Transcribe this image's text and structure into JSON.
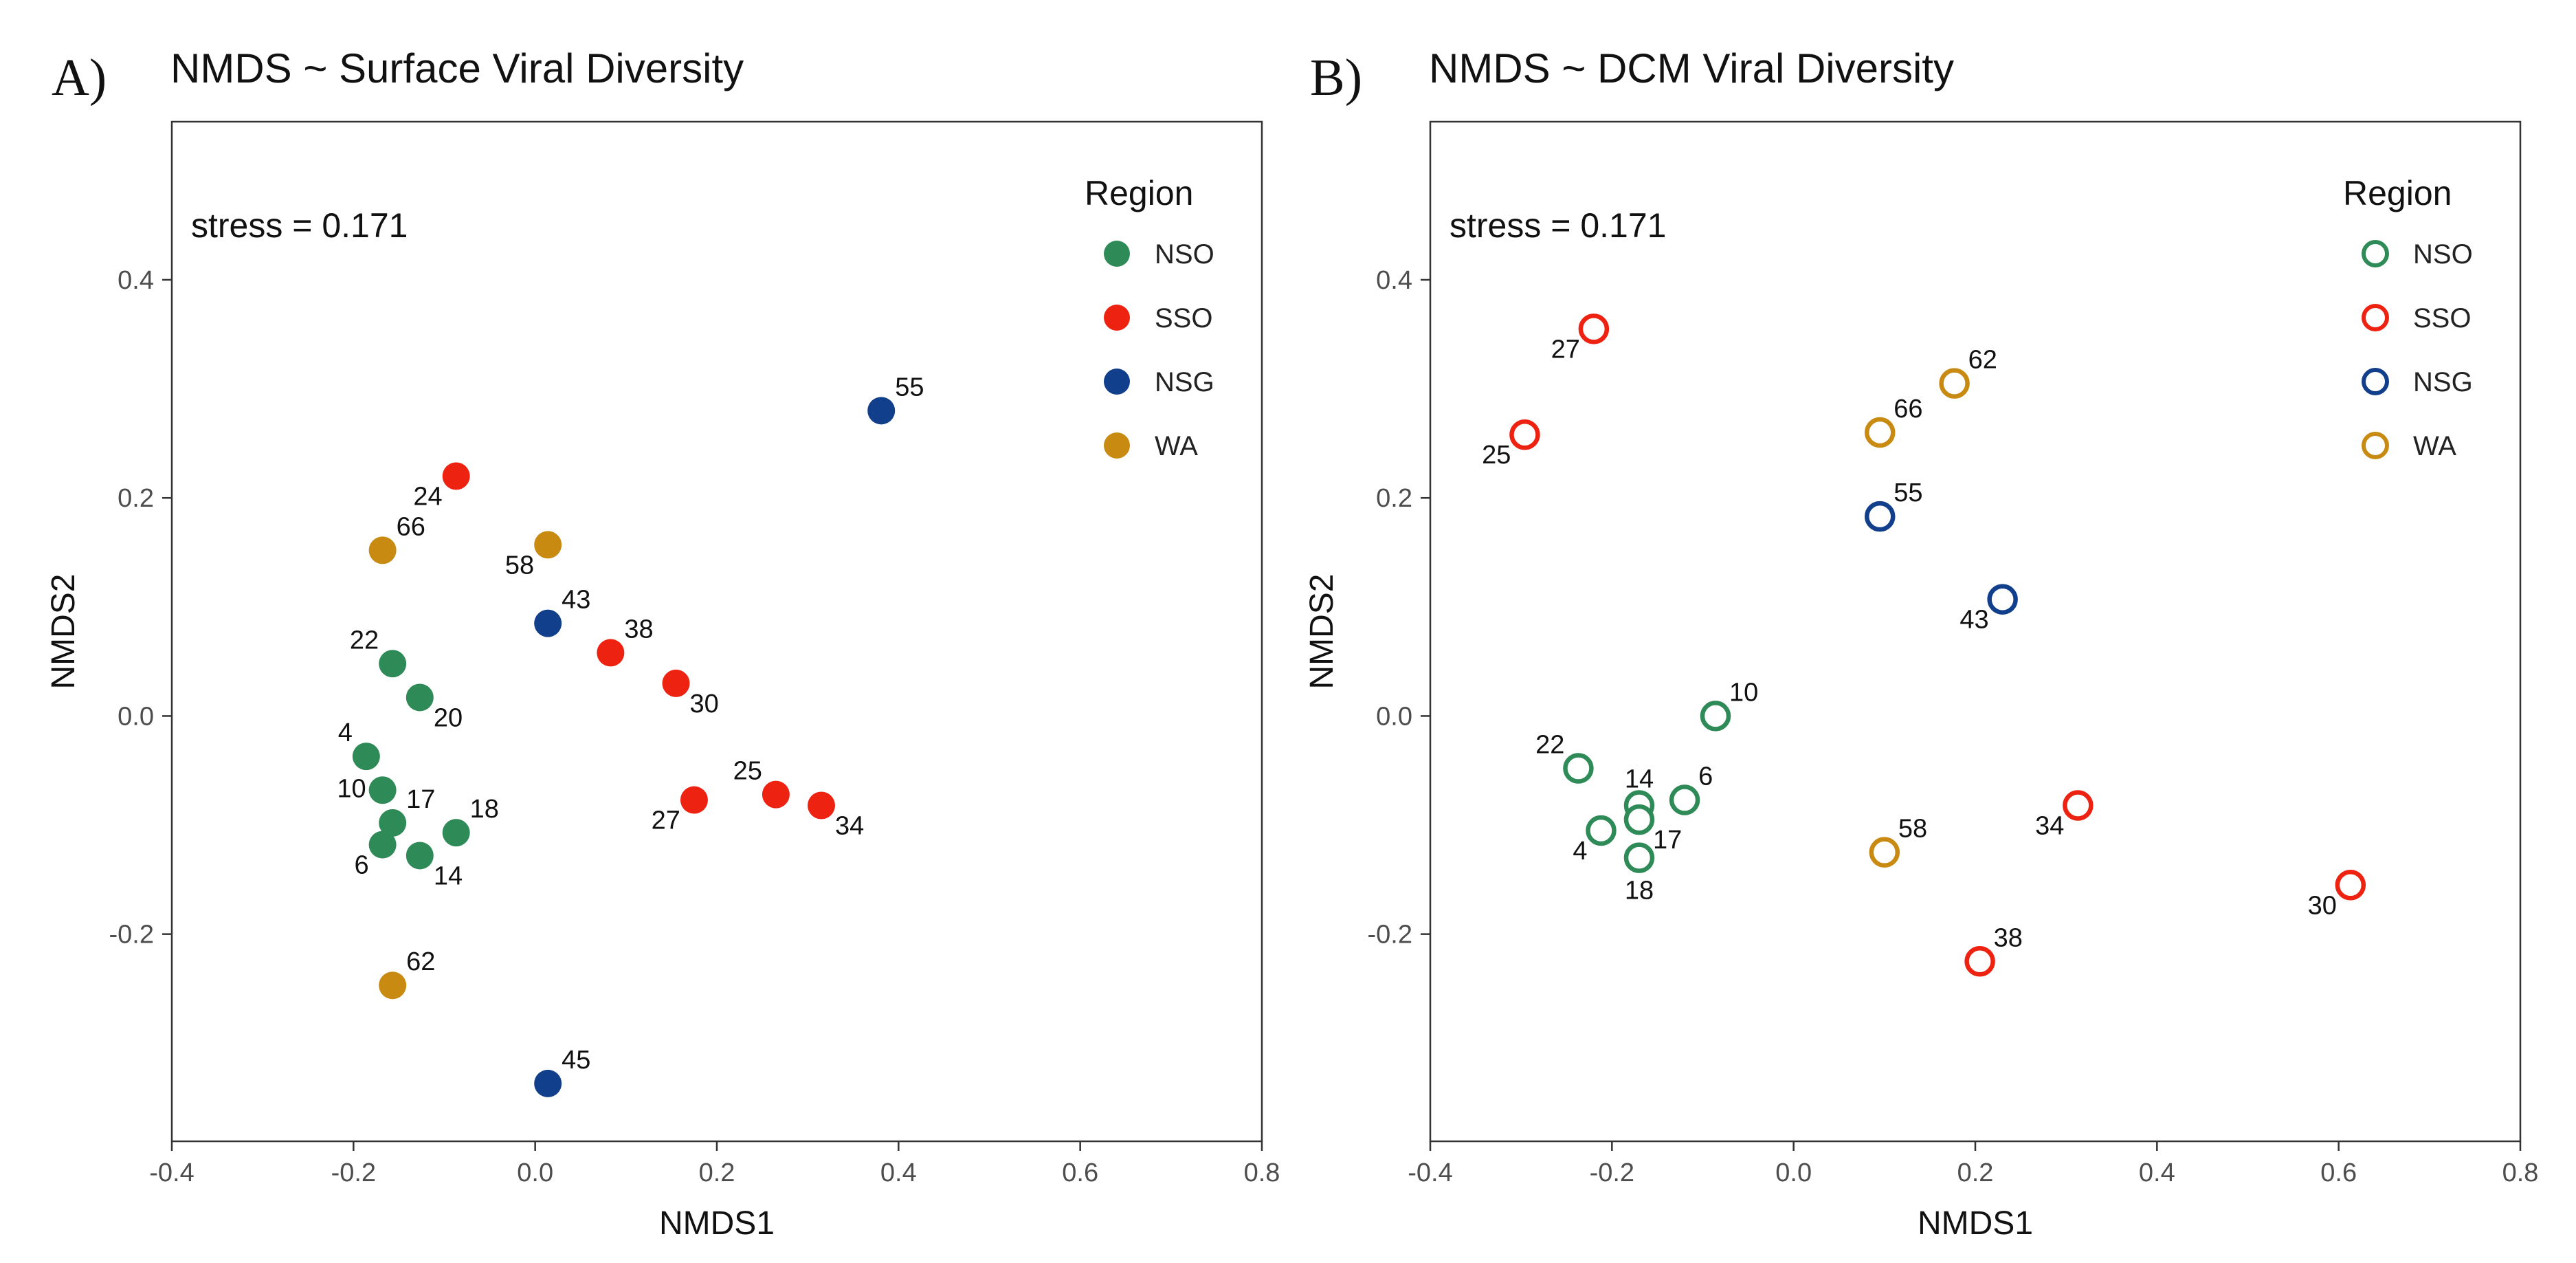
{
  "chart_data": [
    {
      "type": "scatter",
      "panel_label": "A)",
      "title": "NMDS ~ Surface Viral Diversity",
      "xlabel": "NMDS1",
      "ylabel": "NMDS2",
      "xlim": [
        -0.4,
        0.8
      ],
      "ylim": [
        -0.39,
        0.545
      ],
      "xticks": [
        -0.4,
        -0.2,
        0.0,
        0.2,
        0.4,
        0.6,
        0.8
      ],
      "xtick_labels": [
        "-0.4",
        "-0.2",
        "0.0",
        "0.2",
        "0.4",
        "0.6",
        "0.8"
      ],
      "yticks": [
        -0.2,
        0.0,
        0.2,
        0.4
      ],
      "ytick_labels": [
        "-0.2",
        "0.0",
        "0.2",
        "0.4"
      ],
      "annotation": "stress = 0.171",
      "marker": "filled",
      "grid": false,
      "legend": {
        "title": "Region",
        "placement": "top-right",
        "entries": [
          {
            "label": "NSO",
            "color": "#2e8b57"
          },
          {
            "label": "SSO",
            "color": "#ee2211"
          },
          {
            "label": "NSG",
            "color": "#123f8c"
          },
          {
            "label": "WA",
            "color": "#c98a12"
          }
        ]
      },
      "series": [
        {
          "name": "NSO",
          "color": "#2e8b57",
          "points": [
            {
              "x": -0.157,
              "y": 0.048,
              "label": "22",
              "pos": "upper-left"
            },
            {
              "x": -0.127,
              "y": 0.017,
              "label": "20",
              "pos": "lower-right"
            },
            {
              "x": -0.186,
              "y": -0.037,
              "label": "4",
              "pos": "upper-left"
            },
            {
              "x": -0.168,
              "y": -0.068,
              "label": "10",
              "pos": "left"
            },
            {
              "x": -0.157,
              "y": -0.098,
              "label": "17",
              "pos": "upper-right"
            },
            {
              "x": -0.087,
              "y": -0.107,
              "label": "18",
              "pos": "upper-right"
            },
            {
              "x": -0.168,
              "y": -0.118,
              "label": "6",
              "pos": "lower-left"
            },
            {
              "x": -0.127,
              "y": -0.128,
              "label": "14",
              "pos": "lower-right"
            }
          ]
        },
        {
          "name": "SSO",
          "color": "#ee2211",
          "points": [
            {
              "x": -0.087,
              "y": 0.22,
              "label": "24",
              "pos": "lower-left"
            },
            {
              "x": 0.083,
              "y": 0.058,
              "label": "38",
              "pos": "upper-right"
            },
            {
              "x": 0.155,
              "y": 0.03,
              "label": "30",
              "pos": "lower-right"
            },
            {
              "x": 0.175,
              "y": -0.077,
              "label": "27",
              "pos": "lower-left"
            },
            {
              "x": 0.265,
              "y": -0.072,
              "label": "25",
              "pos": "upper-left"
            },
            {
              "x": 0.315,
              "y": -0.082,
              "label": "34",
              "pos": "lower-right"
            }
          ]
        },
        {
          "name": "NSG",
          "color": "#123f8c",
          "points": [
            {
              "x": 0.381,
              "y": 0.28,
              "label": "55",
              "pos": "upper-right"
            },
            {
              "x": 0.014,
              "y": 0.085,
              "label": "43",
              "pos": "upper-right"
            },
            {
              "x": 0.014,
              "y": -0.337,
              "label": "45",
              "pos": "upper-right"
            }
          ]
        },
        {
          "name": "WA",
          "color": "#c98a12",
          "points": [
            {
              "x": -0.168,
              "y": 0.152,
              "label": "66",
              "pos": "upper-right"
            },
            {
              "x": 0.014,
              "y": 0.157,
              "label": "58",
              "pos": "lower-left"
            },
            {
              "x": -0.157,
              "y": -0.247,
              "label": "62",
              "pos": "upper-right"
            }
          ]
        }
      ]
    },
    {
      "type": "scatter",
      "panel_label": "B)",
      "title": "NMDS ~ DCM Viral Diversity",
      "xlabel": "NMDS1",
      "ylabel": "NMDS2",
      "xlim": [
        -0.4,
        0.8
      ],
      "ylim": [
        -0.39,
        0.545
      ],
      "xticks": [
        -0.4,
        -0.2,
        0.0,
        0.2,
        0.4,
        0.6,
        0.8
      ],
      "xtick_labels": [
        "-0.4",
        "-0.2",
        "0.0",
        "0.2",
        "0.4",
        "0.6",
        "0.8"
      ],
      "yticks": [
        -0.2,
        0.0,
        0.2,
        0.4
      ],
      "ytick_labels": [
        "-0.2",
        "0.0",
        "0.2",
        "0.4"
      ],
      "annotation": "stress = 0.171",
      "marker": "hollow",
      "grid": false,
      "legend": {
        "title": "Region",
        "placement": "top-right",
        "entries": [
          {
            "label": "NSO",
            "color": "#2e8b57"
          },
          {
            "label": "SSO",
            "color": "#ee2211"
          },
          {
            "label": "NSG",
            "color": "#123f8c"
          },
          {
            "label": "WA",
            "color": "#c98a12"
          }
        ]
      },
      "series": [
        {
          "name": "NSO",
          "color": "#2e8b57",
          "points": [
            {
              "x": -0.086,
              "y": 0.0,
              "label": "10",
              "pos": "upper-right"
            },
            {
              "x": -0.237,
              "y": -0.048,
              "label": "22",
              "pos": "upper-left"
            },
            {
              "x": -0.12,
              "y": -0.077,
              "label": "6",
              "pos": "upper-right"
            },
            {
              "x": -0.17,
              "y": -0.082,
              "label": "14",
              "pos": "upper-center"
            },
            {
              "x": -0.17,
              "y": -0.095,
              "label": "17",
              "pos": "lower-right"
            },
            {
              "x": -0.212,
              "y": -0.105,
              "label": "4",
              "pos": "lower-left"
            },
            {
              "x": -0.17,
              "y": -0.13,
              "label": "18",
              "pos": "below"
            }
          ]
        },
        {
          "name": "SSO",
          "color": "#ee2211",
          "points": [
            {
              "x": -0.22,
              "y": 0.355,
              "label": "27",
              "pos": "lower-left"
            },
            {
              "x": -0.296,
              "y": 0.258,
              "label": "25",
              "pos": "lower-left"
            },
            {
              "x": 0.313,
              "y": -0.082,
              "label": "34",
              "pos": "lower-left"
            },
            {
              "x": 0.613,
              "y": -0.155,
              "label": "30",
              "pos": "lower-left"
            },
            {
              "x": 0.205,
              "y": -0.225,
              "label": "38",
              "pos": "upper-right"
            }
          ]
        },
        {
          "name": "NSG",
          "color": "#123f8c",
          "points": [
            {
              "x": 0.095,
              "y": 0.183,
              "label": "55",
              "pos": "upper-right"
            },
            {
              "x": 0.23,
              "y": 0.107,
              "label": "43",
              "pos": "lower-left"
            }
          ]
        },
        {
          "name": "WA",
          "color": "#c98a12",
          "points": [
            {
              "x": 0.177,
              "y": 0.305,
              "label": "62",
              "pos": "upper-right"
            },
            {
              "x": 0.095,
              "y": 0.26,
              "label": "66",
              "pos": "upper-right"
            },
            {
              "x": 0.1,
              "y": -0.125,
              "label": "58",
              "pos": "upper-right"
            }
          ]
        }
      ]
    }
  ]
}
